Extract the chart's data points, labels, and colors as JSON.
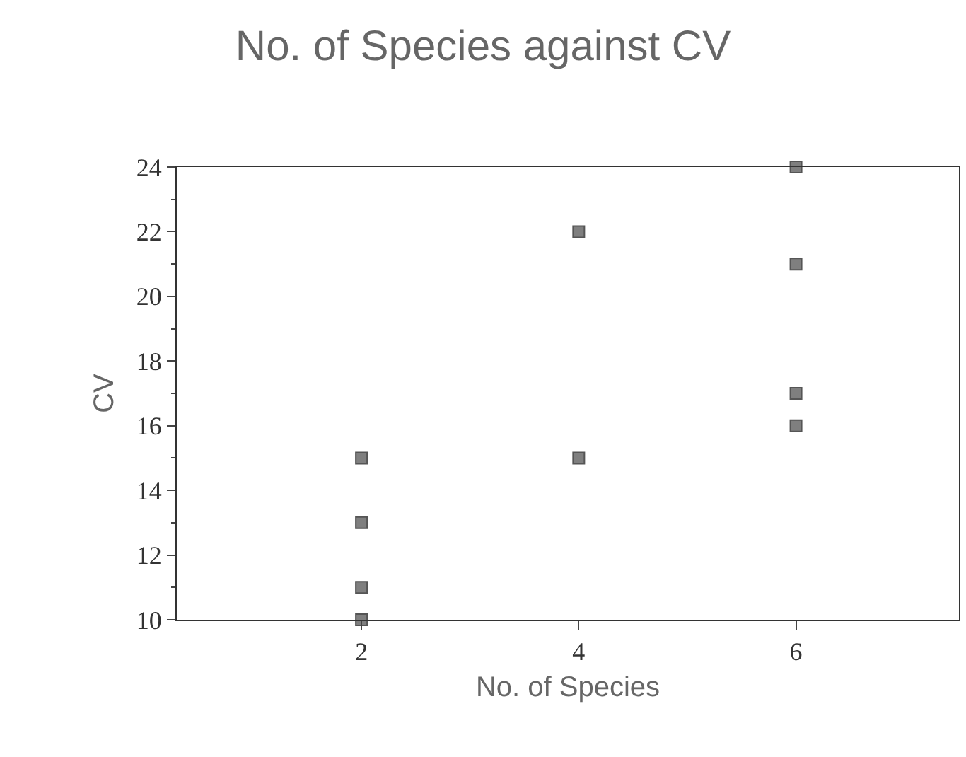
{
  "chart_data": {
    "type": "scatter",
    "title": "No. of Species against CV",
    "xlabel": "No. of Species",
    "ylabel": "CV",
    "x": [
      2,
      2,
      2,
      2,
      4,
      4,
      6,
      6,
      6,
      6
    ],
    "values": [
      15,
      13,
      11,
      10,
      22,
      15,
      24,
      21,
      17,
      16
    ],
    "color": "#7f7f7f",
    "marker": "square",
    "xlim": [
      0.3,
      7.5
    ],
    "xticks": [
      2,
      4,
      6
    ],
    "ylim": [
      10,
      24
    ],
    "yticks": [
      10,
      12,
      14,
      16,
      18,
      20,
      22,
      24
    ]
  }
}
